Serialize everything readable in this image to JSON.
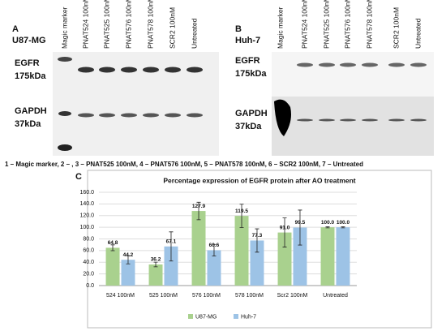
{
  "panel_a": {
    "letter": "A",
    "cell_line": "U87-MG",
    "lanes": [
      "Magic marker",
      "PNAT524 100nM",
      "PNAT525 100nM",
      "PNAT576 100nM",
      "PNAT578 100nM",
      "SCR2 100nM",
      "Untreated"
    ],
    "rows": [
      {
        "protein": "EGFR",
        "size": "175kDa"
      },
      {
        "protein": "GAPDH",
        "size": "37kDa"
      }
    ]
  },
  "panel_b": {
    "letter": "B",
    "cell_line": "Huh-7",
    "lanes": [
      "Magic marker",
      "PNAT524 100nM",
      "PNAT525 100nM",
      "PNAT576 100nM",
      "PNAT578 100nM",
      "SCR2 100nM",
      "Untreated"
    ],
    "rows": [
      {
        "protein": "EGFR",
        "size": "175kDa"
      },
      {
        "protein": "GAPDH",
        "size": "37kDa"
      }
    ]
  },
  "caption": "1 – Magic marker, 2 – , 3 – PNAT525 100nM, 4 – PNAT576 100nM, 5 – PNAT578 100nM, 6 – SCR2 100nM, 7 – Untreated",
  "chart_data": {
    "type": "bar",
    "panel_letter": "C",
    "title": "Percentage expression of EGFR protein after AO treatment",
    "categories": [
      "524 100nM",
      "525 100nM",
      "576 100nM",
      "578 100nM",
      "Scr2 100nM",
      "Untreated"
    ],
    "series": [
      {
        "name": "U87-MG",
        "color": "#a9d18e",
        "values": [
          64.8,
          36.2,
          127.9,
          119.5,
          91.0,
          100.0
        ],
        "value_labels": [
          "64.8",
          "36.2",
          "127.9",
          "119.5",
          "91.0",
          "100.0"
        ],
        "errors": [
          5,
          4,
          15,
          20,
          25,
          1
        ]
      },
      {
        "name": "Huh-7",
        "color": "#9dc3e6",
        "values": [
          44.2,
          67.1,
          60.6,
          77.3,
          99.5,
          100.0
        ],
        "value_labels": [
          "44.2",
          "67.1",
          "60.6",
          "77.3",
          "99.5",
          "100.0"
        ],
        "errors": [
          7,
          25,
          10,
          20,
          30,
          1
        ]
      }
    ],
    "ylim": [
      0,
      160
    ],
    "yticks": [
      {
        "value": 0,
        "label": "0.0"
      },
      {
        "value": 20,
        "label": "20.0"
      },
      {
        "value": 40,
        "label": "40.0"
      },
      {
        "value": 60,
        "label": "60.0"
      },
      {
        "value": 80,
        "label": "80.0"
      },
      {
        "value": 100,
        "label": "100.0"
      },
      {
        "value": 120,
        "label": "120.0"
      },
      {
        "value": 140,
        "label": "140.0"
      },
      {
        "value": 160,
        "label": "160.0"
      }
    ],
    "grid": true
  }
}
